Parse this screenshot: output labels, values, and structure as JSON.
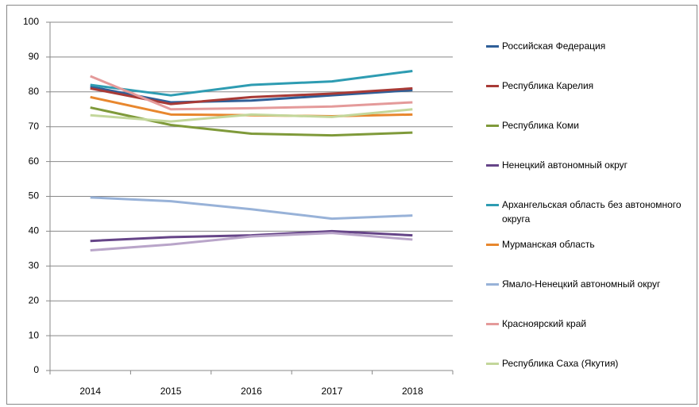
{
  "chart_data": {
    "type": "line",
    "categories": [
      "2014",
      "2015",
      "2016",
      "2017",
      "2018"
    ],
    "ylim": [
      0,
      100
    ],
    "yticks": [
      0,
      10,
      20,
      30,
      40,
      50,
      60,
      70,
      80,
      90,
      100
    ],
    "grid": true,
    "legend": "right",
    "series": [
      {
        "name": "Российская Федерация",
        "color": "#2f5f98",
        "values": [
          81.5,
          77,
          77.5,
          79,
          80.5
        ]
      },
      {
        "name": "Республика Карелия",
        "color": "#a83a36",
        "values": [
          81,
          76.5,
          78.5,
          79.5,
          81
        ]
      },
      {
        "name": "Республика Коми",
        "color": "#7f9a3a",
        "values": [
          75.5,
          70.5,
          68,
          67.5,
          68.3
        ]
      },
      {
        "name": "Ненецкий автономный округ",
        "color": "#664588",
        "values": [
          37.2,
          38.3,
          38.8,
          40,
          38.8
        ]
      },
      {
        "name": "Архангельская область без автономного округа",
        "color": "#2e9cb2",
        "values": [
          82,
          79,
          82,
          83,
          86
        ]
      },
      {
        "name": "Мурманская область",
        "color": "#e8872e",
        "values": [
          78.5,
          73.5,
          73.3,
          73,
          73.5
        ]
      },
      {
        "name": "Ямало-Ненецкий автономный округ",
        "color": "#98b2d8",
        "values": [
          49.7,
          48.6,
          46.3,
          43.6,
          44.5
        ]
      },
      {
        "name": "Красноярский край",
        "color": "#e49a9a",
        "values": [
          84.5,
          75,
          75.3,
          75.8,
          77
        ]
      },
      {
        "name": "Республика Саха (Якутия)",
        "color": "#c3d79b",
        "values": [
          73.3,
          71.5,
          73.5,
          72.8,
          75
        ]
      },
      {
        "color": "#b9a5c9",
        "values": [
          34.5,
          36.2,
          38.5,
          39.5,
          37.6
        ]
      }
    ]
  }
}
